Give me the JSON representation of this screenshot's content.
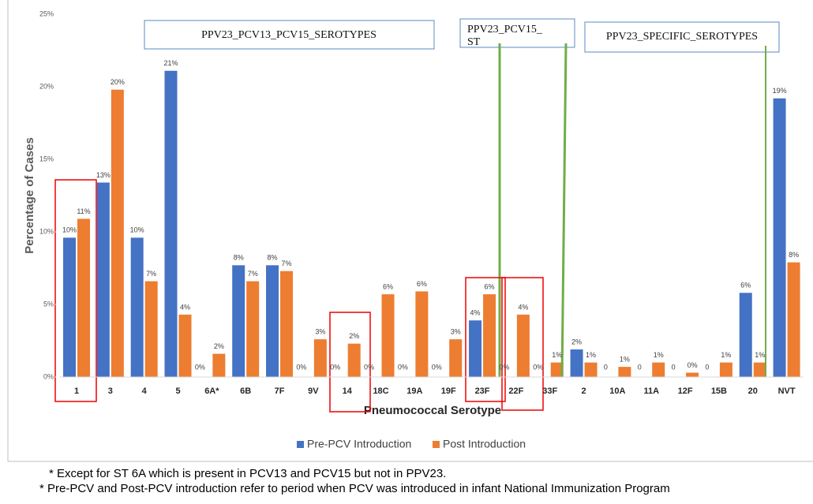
{
  "chart_data": {
    "type": "bar",
    "y_label": "Percentage of Cases",
    "x_label": "Pneumococcal Serotype",
    "categories": [
      "1",
      "3",
      "4",
      "5",
      "6A*",
      "6B",
      "7F",
      "9V",
      "14",
      "18C",
      "19A",
      "19F",
      "23F",
      "22F",
      "33F",
      "2",
      "10A",
      "11A",
      "12F",
      "15B",
      "20",
      "NVT"
    ],
    "series": [
      {
        "name": "Pre-PCV Introduction",
        "color": "#4472c4",
        "values": [
          9.6,
          13.4,
          9.6,
          21.1,
          0,
          7.7,
          7.7,
          0,
          0,
          0,
          0,
          0,
          3.9,
          0,
          0,
          1.9,
          0,
          0,
          0,
          0,
          5.8,
          19.2
        ],
        "value_labels": [
          "10%",
          "13%",
          "10%",
          "21%",
          "0%",
          "8%",
          "8%",
          "0%",
          "0%",
          "0%",
          "0%",
          "0%",
          "4%",
          "0%",
          "0%",
          "2%",
          "0",
          "0",
          "0",
          "0",
          "6%",
          "19%"
        ]
      },
      {
        "name": "Post Introduction",
        "color": "#ed7d31",
        "values": [
          10.9,
          19.8,
          6.6,
          4.3,
          1.6,
          6.6,
          7.3,
          2.6,
          2.3,
          5.7,
          5.9,
          2.6,
          5.7,
          4.3,
          1.0,
          1.0,
          0.7,
          1.0,
          0.3,
          1.0,
          1.0,
          7.9
        ],
        "value_labels": [
          "11%",
          "20%",
          "7%",
          "4%",
          "2%",
          "7%",
          "7%",
          "3%",
          "2%",
          "6%",
          "6%",
          "3%",
          "6%",
          "4%",
          "1%",
          "1%",
          "1%",
          "1%",
          "0%",
          "1%",
          "1%",
          "8%"
        ]
      }
    ],
    "ylim": [
      0,
      25
    ],
    "yticks": [
      {
        "value": 0,
        "label": "0%"
      },
      {
        "value": 5,
        "label": "5%"
      },
      {
        "value": 10,
        "label": "10%"
      },
      {
        "value": 15,
        "label": "15%"
      },
      {
        "value": 20,
        "label": "20%"
      },
      {
        "value": 25,
        "label": "25%"
      }
    ],
    "legend": "bottom",
    "annotations": [
      {
        "lines": [
          "PPV23_PCV13_PCV15_SEROTYPES"
        ]
      },
      {
        "lines": [
          "PPV23_PCV15_",
          "ST"
        ]
      },
      {
        "lines": [
          "PPV23_SPECIFIC_SEROTYPES"
        ]
      }
    ]
  },
  "footnotes": [
    "* Except for ST 6A which is present in PCV13 and PCV15 but not in PPV23.",
    "* Pre-PCV and Post-PCV introduction refer to period when PCV was introduced in infant National Immunization Program"
  ]
}
